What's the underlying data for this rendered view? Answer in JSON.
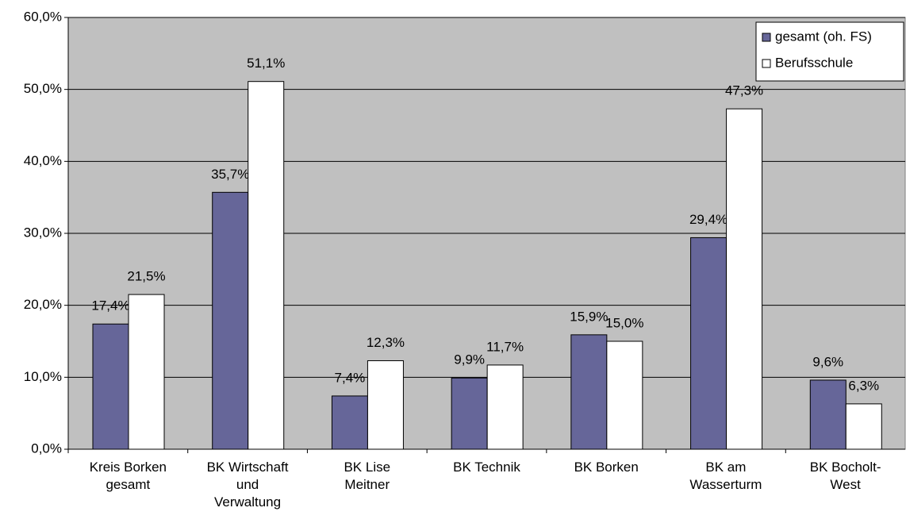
{
  "chart_data": {
    "type": "bar",
    "categories": [
      "Kreis Borken\ngesamt",
      "BK Wirtschaft\nund\nVerwaltung",
      "BK Lise\nMeitner",
      "BK Technik",
      "BK Borken",
      "BK am\nWasserturm",
      "BK Bocholt-\nWest"
    ],
    "series": [
      {
        "name": "gesamt (oh. FS)",
        "color": "#666699",
        "values": [
          17.4,
          35.7,
          7.4,
          9.9,
          15.9,
          29.4,
          9.6
        ],
        "value_labels": [
          "17,4%",
          "35,7%",
          "7,4%",
          "9,9%",
          "15,9%",
          "29,4%",
          "9,6%"
        ]
      },
      {
        "name": "Berufsschule",
        "color": "#ffffff",
        "values": [
          21.5,
          51.1,
          12.3,
          11.7,
          15.0,
          47.3,
          6.3
        ],
        "value_labels": [
          "21,5%",
          "51,1%",
          "12,3%",
          "11,7%",
          "15,0%",
          "47,3%",
          "6,3%"
        ]
      }
    ],
    "ylim": [
      0,
      60
    ],
    "yticks": [
      {
        "value": 0,
        "label": "0,0%"
      },
      {
        "value": 10,
        "label": "10,0%"
      },
      {
        "value": 20,
        "label": "20,0%"
      },
      {
        "value": 30,
        "label": "30,0%"
      },
      {
        "value": 40,
        "label": "40,0%"
      },
      {
        "value": 50,
        "label": "50,0%"
      },
      {
        "value": 60,
        "label": "60,0%"
      }
    ],
    "grid": true,
    "plot_background": "#c0c0c0",
    "legend": "top-right"
  }
}
